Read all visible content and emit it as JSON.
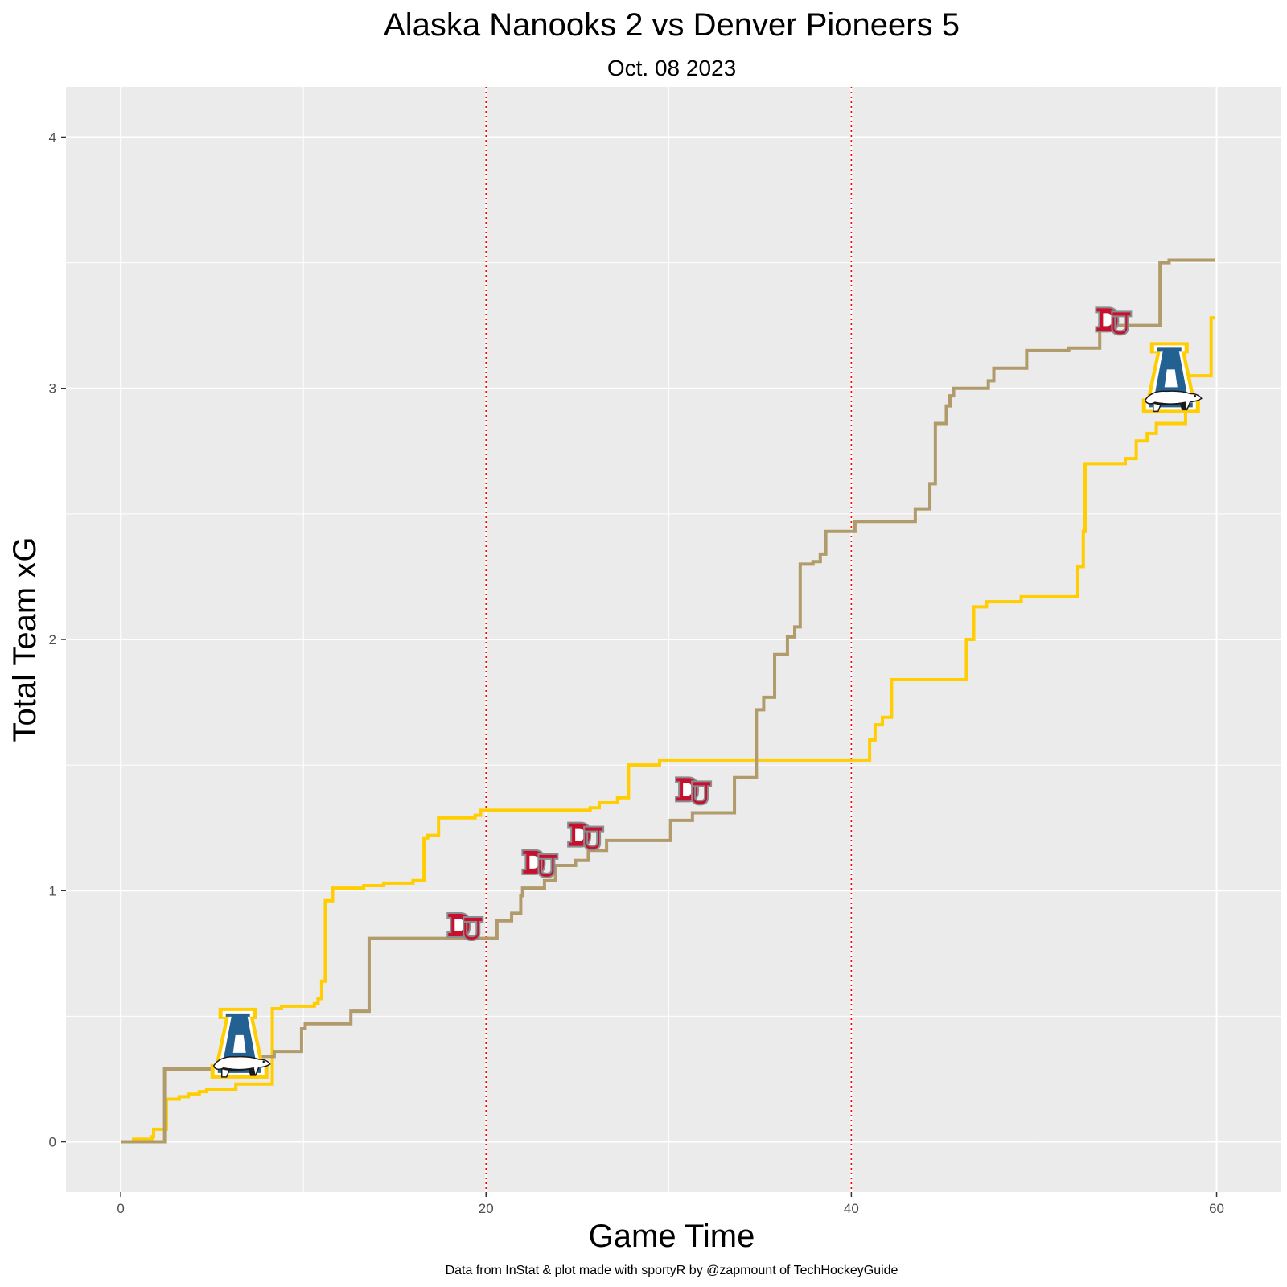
{
  "chart_data": {
    "type": "line",
    "title": "Alaska Nanooks 2 vs Denver Pioneers 5",
    "subtitle": "Oct. 08 2023",
    "xlabel": "Game Time",
    "ylabel": "Total Team xG",
    "caption": "Data from InStat & plot made with sportyR by @zapmount of TechHockeyGuide",
    "xlim": [
      -3,
      63.5
    ],
    "ylim": [
      -0.2,
      4.2
    ],
    "x_ticks": [
      0,
      20,
      40,
      60
    ],
    "y_ticks": [
      0,
      1,
      2,
      3,
      4
    ],
    "period_lines": [
      20,
      40
    ],
    "grid": true,
    "series": [
      {
        "team": "Alaska Nanooks",
        "color": "#FFCD00",
        "step_x": [
          0,
          0.7,
          1.7,
          1.8,
          2.5,
          3.2,
          3.7,
          4.3,
          4.7,
          6.3,
          8.3,
          8.8,
          10.6,
          10.8,
          11.0,
          11.2,
          11.6,
          13.3,
          14.4,
          16.0,
          16.6,
          16.8,
          17.4,
          19.4,
          19.7,
          25.7,
          26.2,
          27.2,
          27.8,
          29.5,
          41.0,
          41.3,
          41.7,
          42.2,
          46.3,
          46.7,
          47.4,
          49.3,
          52.4,
          52.7,
          52.8,
          55.0,
          55.6,
          56.2,
          56.7,
          58.3,
          59.7
        ],
        "step_y": [
          0,
          0.01,
          0.02,
          0.05,
          0.17,
          0.18,
          0.19,
          0.2,
          0.21,
          0.23,
          0.53,
          0.54,
          0.55,
          0.57,
          0.64,
          0.96,
          1.01,
          1.02,
          1.03,
          1.04,
          1.21,
          1.22,
          1.29,
          1.3,
          1.32,
          1.33,
          1.35,
          1.37,
          1.5,
          1.52,
          1.6,
          1.66,
          1.69,
          1.84,
          2.0,
          2.13,
          2.15,
          2.17,
          2.29,
          2.43,
          2.7,
          2.72,
          2.79,
          2.82,
          2.86,
          3.05,
          3.28
        ],
        "x_end": 59.9,
        "goals": [
          {
            "x": 6.5,
            "y": 0.38
          },
          {
            "x": 57.5,
            "y": 3.03
          }
        ]
      },
      {
        "team": "Denver Pioneers",
        "color": "#B19B6B",
        "step_x": [
          0,
          2.4,
          6.5,
          7.3,
          8.4,
          9.9,
          10.1,
          12.6,
          13.6,
          20.6,
          21.4,
          21.9,
          22.0,
          23.2,
          23.8,
          24.9,
          25.6,
          26.6,
          30.1,
          31.3,
          33.6,
          34.8,
          35.2,
          35.8,
          36.5,
          36.9,
          37.2,
          37.9,
          38.3,
          38.6,
          40.2,
          43.5,
          44.3,
          44.6,
          45.2,
          45.4,
          45.6,
          47.5,
          47.8,
          49.6,
          51.9,
          53.4,
          53.6,
          56.9,
          57.4,
          59.9
        ],
        "step_y": [
          0,
          0.29,
          0.3,
          0.34,
          0.36,
          0.45,
          0.47,
          0.52,
          0.81,
          0.88,
          0.91,
          0.98,
          1.01,
          1.04,
          1.1,
          1.12,
          1.16,
          1.2,
          1.28,
          1.31,
          1.45,
          1.72,
          1.77,
          1.94,
          2.01,
          2.05,
          2.3,
          2.31,
          2.34,
          2.43,
          2.47,
          2.52,
          2.62,
          2.86,
          2.93,
          2.97,
          3.0,
          3.03,
          3.08,
          3.15,
          3.16,
          3.16,
          3.25,
          3.5,
          3.51,
          3.51
        ],
        "x_end": 59.9,
        "goals": [
          {
            "x": 18.9,
            "y": 0.86
          },
          {
            "x": 23.0,
            "y": 1.11
          },
          {
            "x": 25.5,
            "y": 1.22
          },
          {
            "x": 31.4,
            "y": 1.4
          },
          {
            "x": 54.4,
            "y": 3.27
          }
        ]
      }
    ]
  },
  "colors": {
    "panel": "#EBEBEB",
    "grid": "#FFFFFF",
    "period_line": "#FF0000"
  },
  "icons": {
    "alaska": "alaska-nanooks-logo",
    "denver": "denver-pioneers-logo"
  }
}
